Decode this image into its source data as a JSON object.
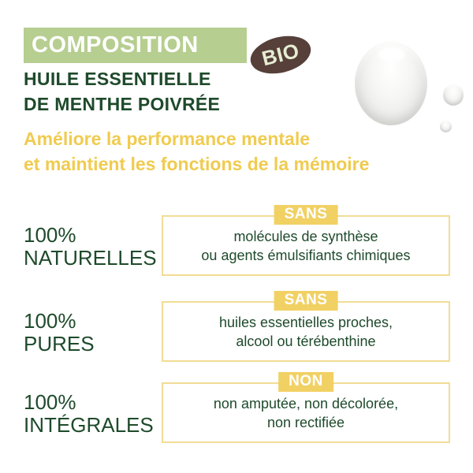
{
  "colors": {
    "banner_green": "#b6ce90",
    "dark_green_text": "#1e4a2b",
    "subtitle_yellow": "#f0cb4f",
    "badge_yellow": "#f1d164",
    "box_border_yellow": "#f2dc96",
    "bio_brown": "#564039",
    "bio_text": "#e6edd2",
    "background": "#ffffff"
  },
  "header": {
    "banner_label": "COMPOSITION",
    "bio_label": "BIO",
    "title_line1": "HUILE ESSENTIELLE",
    "title_line2": "DE MENTHE POIVRÉE",
    "subtitle_line1": "Améliore la performance mentale",
    "subtitle_line2": "et maintient les fonctions de la mémoire"
  },
  "rows": [
    {
      "percent": "100%",
      "quality": "NATURELLES",
      "badge": "SANS",
      "desc_line1": "molécules de synthèse",
      "desc_line2": "ou agents émulsifiants chimiques"
    },
    {
      "percent": "100%",
      "quality": "PURES",
      "badge": "SANS",
      "desc_line1": "huiles essentielles proches,",
      "desc_line2": "alcool ou térébenthine"
    },
    {
      "percent": "100%",
      "quality": "INTÉGRALES",
      "badge": "NON",
      "desc_line1": "non amputée, non décolorée,",
      "desc_line2": "non rectifiée"
    }
  ]
}
